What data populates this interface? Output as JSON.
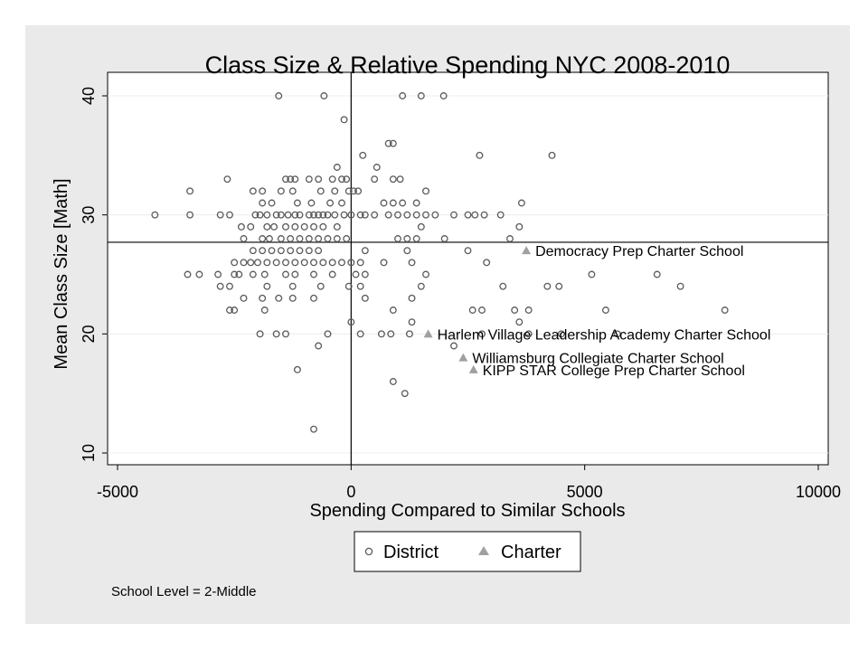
{
  "chart_data": {
    "type": "scatter",
    "title": "Class Size & Relative Spending NYC 2008-2010",
    "xlabel": "Spending Compared to Similar Schools",
    "ylabel": "Mean Class Size [Math]",
    "xlim": [
      -5000,
      10000
    ],
    "ylim": [
      10,
      40
    ],
    "xticks": [
      -5000,
      0,
      5000,
      10000
    ],
    "yticks": [
      10,
      20,
      30,
      40
    ],
    "xtick_labels": [
      "-5000",
      "0",
      "5000",
      "10000"
    ],
    "ytick_labels": [
      "10",
      "20",
      "30",
      "40"
    ],
    "grid": "horizontal",
    "reference_lines": {
      "x": 0,
      "y": 27.7
    },
    "legend": {
      "position": "bottom",
      "entries": [
        "District",
        "Charter"
      ]
    },
    "note": "School Level = 2-Middle",
    "colors": {
      "district_marker": "#5a5a5a",
      "charter_marker": "#a0a0a0",
      "outer_background": "#eaeaea",
      "plot_background": "#ffffff"
    },
    "series": [
      {
        "name": "District",
        "marker": "hollow-circle",
        "points": [
          [
            -1550,
            40
          ],
          [
            -580,
            40
          ],
          [
            1100,
            40
          ],
          [
            1500,
            40
          ],
          [
            1980,
            40
          ],
          [
            -150,
            38
          ],
          [
            800,
            36
          ],
          [
            900,
            36
          ],
          [
            250,
            35
          ],
          [
            2750,
            35
          ],
          [
            4300,
            35
          ],
          [
            -300,
            34
          ],
          [
            550,
            34
          ],
          [
            -2650,
            33
          ],
          [
            -1400,
            33
          ],
          [
            -1300,
            33
          ],
          [
            -1200,
            33
          ],
          [
            -900,
            33
          ],
          [
            -700,
            33
          ],
          [
            -400,
            33
          ],
          [
            -200,
            33
          ],
          [
            -100,
            33
          ],
          [
            500,
            33
          ],
          [
            900,
            33
          ],
          [
            1050,
            33
          ],
          [
            -3450,
            32
          ],
          [
            -2100,
            32
          ],
          [
            -1900,
            32
          ],
          [
            -1500,
            32
          ],
          [
            -1250,
            32
          ],
          [
            -650,
            32
          ],
          [
            -350,
            32
          ],
          [
            -50,
            32
          ],
          [
            50,
            32
          ],
          [
            150,
            32
          ],
          [
            1600,
            32
          ],
          [
            -1900,
            31
          ],
          [
            -1700,
            31
          ],
          [
            -1150,
            31
          ],
          [
            -850,
            31
          ],
          [
            -450,
            31
          ],
          [
            -200,
            31
          ],
          [
            700,
            31
          ],
          [
            900,
            31
          ],
          [
            1100,
            31
          ],
          [
            1400,
            31
          ],
          [
            3650,
            31
          ],
          [
            -4200,
            30
          ],
          [
            -3450,
            30
          ],
          [
            -2800,
            30
          ],
          [
            -2600,
            30
          ],
          [
            -2050,
            30
          ],
          [
            -1950,
            30
          ],
          [
            -1800,
            30
          ],
          [
            -1600,
            30
          ],
          [
            -1500,
            30
          ],
          [
            -1350,
            30
          ],
          [
            -1200,
            30
          ],
          [
            -1100,
            30
          ],
          [
            -900,
            30
          ],
          [
            -800,
            30
          ],
          [
            -700,
            30
          ],
          [
            -600,
            30
          ],
          [
            -500,
            30
          ],
          [
            -350,
            30
          ],
          [
            -150,
            30
          ],
          [
            0,
            30
          ],
          [
            200,
            30
          ],
          [
            300,
            30
          ],
          [
            500,
            30
          ],
          [
            800,
            30
          ],
          [
            1000,
            30
          ],
          [
            1200,
            30
          ],
          [
            1400,
            30
          ],
          [
            1600,
            30
          ],
          [
            1800,
            30
          ],
          [
            2200,
            30
          ],
          [
            2500,
            30
          ],
          [
            2650,
            30
          ],
          [
            2850,
            30
          ],
          [
            3200,
            30
          ],
          [
            -2350,
            29
          ],
          [
            -2150,
            29
          ],
          [
            -1800,
            29
          ],
          [
            -1650,
            29
          ],
          [
            -1400,
            29
          ],
          [
            -1200,
            29
          ],
          [
            -1000,
            29
          ],
          [
            -800,
            29
          ],
          [
            -600,
            29
          ],
          [
            -300,
            29
          ],
          [
            1500,
            29
          ],
          [
            3600,
            29
          ],
          [
            -2300,
            28
          ],
          [
            -1900,
            28
          ],
          [
            -1750,
            28
          ],
          [
            -1500,
            28
          ],
          [
            -1300,
            28
          ],
          [
            -1100,
            28
          ],
          [
            -900,
            28
          ],
          [
            -700,
            28
          ],
          [
            -500,
            28
          ],
          [
            -300,
            28
          ],
          [
            -100,
            28
          ],
          [
            1000,
            28
          ],
          [
            1200,
            28
          ],
          [
            1400,
            28
          ],
          [
            2000,
            28
          ],
          [
            3400,
            28
          ],
          [
            -2100,
            27
          ],
          [
            -1900,
            27
          ],
          [
            -1700,
            27
          ],
          [
            -1500,
            27
          ],
          [
            -1300,
            27
          ],
          [
            -1100,
            27
          ],
          [
            -900,
            27
          ],
          [
            -700,
            27
          ],
          [
            300,
            27
          ],
          [
            1200,
            27
          ],
          [
            2500,
            27
          ],
          [
            -2500,
            26
          ],
          [
            -2300,
            26
          ],
          [
            -2150,
            26
          ],
          [
            -2000,
            26
          ],
          [
            -1800,
            26
          ],
          [
            -1600,
            26
          ],
          [
            -1400,
            26
          ],
          [
            -1200,
            26
          ],
          [
            -1000,
            26
          ],
          [
            -800,
            26
          ],
          [
            -600,
            26
          ],
          [
            -400,
            26
          ],
          [
            -200,
            26
          ],
          [
            0,
            26
          ],
          [
            200,
            26
          ],
          [
            700,
            26
          ],
          [
            1300,
            26
          ],
          [
            2900,
            26
          ],
          [
            -3500,
            25
          ],
          [
            -3250,
            25
          ],
          [
            -2850,
            25
          ],
          [
            -2500,
            25
          ],
          [
            -2400,
            25
          ],
          [
            -2100,
            25
          ],
          [
            -1850,
            25
          ],
          [
            -1400,
            25
          ],
          [
            -1200,
            25
          ],
          [
            -800,
            25
          ],
          [
            -400,
            25
          ],
          [
            100,
            25
          ],
          [
            300,
            25
          ],
          [
            1600,
            25
          ],
          [
            5150,
            25
          ],
          [
            6550,
            25
          ],
          [
            -2800,
            24
          ],
          [
            -2600,
            24
          ],
          [
            -1800,
            24
          ],
          [
            -1250,
            24
          ],
          [
            -650,
            24
          ],
          [
            -50,
            24
          ],
          [
            200,
            24
          ],
          [
            1500,
            24
          ],
          [
            3250,
            24
          ],
          [
            4200,
            24
          ],
          [
            4450,
            24
          ],
          [
            7050,
            24
          ],
          [
            -2300,
            23
          ],
          [
            -1900,
            23
          ],
          [
            -1550,
            23
          ],
          [
            -1250,
            23
          ],
          [
            -800,
            23
          ],
          [
            300,
            23
          ],
          [
            1300,
            23
          ],
          [
            -2600,
            22
          ],
          [
            -2500,
            22
          ],
          [
            -1850,
            22
          ],
          [
            900,
            22
          ],
          [
            2600,
            22
          ],
          [
            2800,
            22
          ],
          [
            3500,
            22
          ],
          [
            3800,
            22
          ],
          [
            5450,
            22
          ],
          [
            8000,
            22
          ],
          [
            0,
            21
          ],
          [
            1300,
            21
          ],
          [
            3600,
            21
          ],
          [
            -1950,
            20
          ],
          [
            -1600,
            20
          ],
          [
            -1400,
            20
          ],
          [
            -500,
            20
          ],
          [
            200,
            20
          ],
          [
            650,
            20
          ],
          [
            850,
            20
          ],
          [
            1250,
            20
          ],
          [
            2800,
            20
          ],
          [
            3800,
            20
          ],
          [
            4500,
            20
          ],
          [
            5700,
            20
          ],
          [
            -700,
            19
          ],
          [
            2200,
            19
          ],
          [
            -1150,
            17
          ],
          [
            900,
            16
          ],
          [
            1150,
            15
          ],
          [
            -800,
            12
          ]
        ]
      },
      {
        "name": "Charter",
        "marker": "filled-triangle",
        "points": [
          {
            "x": 3750,
            "y": 27,
            "label": "Democracy Prep Charter School"
          },
          {
            "x": 1650,
            "y": 20,
            "label": "Harlem Village Leadership Academy Charter School"
          },
          {
            "x": 2400,
            "y": 18,
            "label": "Williamsburg Collegiate Charter School"
          },
          {
            "x": 2620,
            "y": 17,
            "label": "KIPP STAR College Prep Charter School"
          }
        ]
      }
    ]
  }
}
